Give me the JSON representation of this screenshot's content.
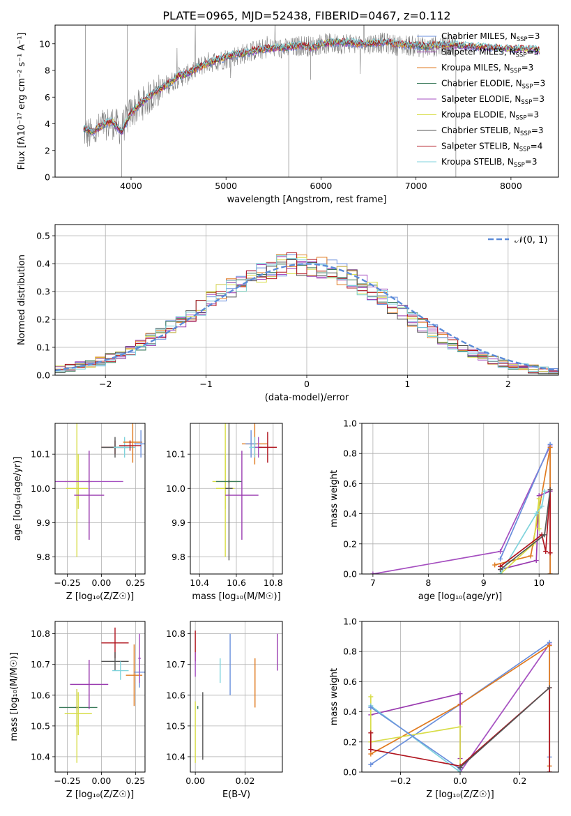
{
  "figure_title": "PLATE=0965, MJD=52438, FIBERID=0467, z=0.112",
  "colors": {
    "Chabrier MILES": "#6a8fdc",
    "Salpeter MILES": "#9a3bb0",
    "Kroupa MILES": "#e07a1f",
    "Chabrier ELODIE": "#3a7a5a",
    "Salpeter ELODIE": "#a54fc0",
    "Kroupa ELODIE": "#d8dd48",
    "Chabrier STELIB": "#555555",
    "Salpeter STELIB": "#b0141e",
    "Kroupa STELIB": "#7fd3dc"
  },
  "chart_data": [
    {
      "id": "spectrum",
      "type": "line",
      "title": "PLATE=0965, MJD=52438, FIBERID=0467, z=0.112",
      "xlabel": "wavelength [Angstrom, rest frame]",
      "ylabel": "Flux [fλ10⁻¹⁷ erg cm⁻² s⁻¹ A⁻¹]",
      "xlim": [
        3200,
        8500
      ],
      "ylim": [
        0,
        11.4
      ],
      "xticks": [
        4000,
        5000,
        6000,
        7000,
        8000
      ],
      "yticks": [
        0,
        2,
        4,
        6,
        8,
        10
      ],
      "grid": false,
      "legend_position": "upper-right",
      "legend": [
        {
          "label": "Chabrier MILES, N",
          "sub": "SSP",
          "tail": "=3"
        },
        {
          "label": "Salpeter MILES, N",
          "sub": "SSP",
          "tail": "=3"
        },
        {
          "label": "Kroupa MILES, N",
          "sub": "SSP",
          "tail": "=3"
        },
        {
          "label": "Chabrier ELODIE, N",
          "sub": "SSP",
          "tail": "=3"
        },
        {
          "label": "Salpeter ELODIE, N",
          "sub": "SSP",
          "tail": "=3"
        },
        {
          "label": "Kroupa ELODIE, N",
          "sub": "SSP",
          "tail": "=3"
        },
        {
          "label": "Chabrier STELIB, N",
          "sub": "SSP",
          "tail": "=3"
        },
        {
          "label": "Salpeter STELIB, N",
          "sub": "SSP",
          "tail": "=4"
        },
        {
          "label": "Kroupa STELIB, N",
          "sub": "SSP",
          "tail": "=3"
        }
      ],
      "observed_anchor_x": [
        3500,
        3600,
        3700,
        3800,
        3900,
        4000,
        4100,
        4200,
        4300,
        4400,
        4500,
        4600,
        4700,
        4800,
        4900,
        5000,
        5100,
        5200,
        5300,
        5400,
        5500,
        5600,
        5700,
        5800,
        5900,
        6000,
        6100,
        6200,
        6300,
        6400,
        6500,
        6600,
        6700,
        6800,
        6900,
        7000,
        7100,
        7200,
        7300,
        7400
      ],
      "observed_anchor_y": [
        3.4,
        3.1,
        3.9,
        4.1,
        3.6,
        4.9,
        5.4,
        6.0,
        6.6,
        7.0,
        7.5,
        7.7,
        8.2,
        8.6,
        8.7,
        8.9,
        9.1,
        9.3,
        9.5,
        9.6,
        9.7,
        9.6,
        9.7,
        9.9,
        9.8,
        10.0,
        10.0,
        10.0,
        10.1,
        9.9,
        10.0,
        10.1,
        10.0,
        9.9,
        9.9,
        9.8,
        9.7,
        9.8,
        9.9,
        9.9
      ],
      "model_anchor_x": [
        3500,
        3600,
        3700,
        3800,
        3900,
        4000,
        4100,
        4200,
        4300,
        4400,
        4500,
        4600,
        4700,
        4800,
        4900,
        5000,
        5100,
        5200,
        5300,
        5400,
        5500,
        5600,
        5700,
        5800,
        5900,
        6000,
        6100,
        6200,
        6300,
        6400,
        6500,
        6600,
        6700,
        6800,
        6900,
        7000,
        7100,
        7200,
        7300,
        7400,
        7600,
        7800,
        8000,
        8200,
        8300
      ],
      "model_anchor_y": [
        3.6,
        3.4,
        3.9,
        4.2,
        3.4,
        4.8,
        5.5,
        6.1,
        6.6,
        7.0,
        7.6,
        7.8,
        8.2,
        8.5,
        8.8,
        9.0,
        9.2,
        9.3,
        9.5,
        9.6,
        9.7,
        9.7,
        9.8,
        9.9,
        9.7,
        10.0,
        10.1,
        10.1,
        10.1,
        10.0,
        10.0,
        10.1,
        10.1,
        10.0,
        9.9,
        9.9,
        9.8,
        9.9,
        9.9,
        9.9,
        9.8,
        9.7,
        9.6,
        9.6,
        9.5
      ]
    },
    {
      "id": "residuals",
      "type": "histogram",
      "xlabel": "(data-model)/error",
      "ylabel": "Normed distribution",
      "xlim": [
        -2.5,
        2.5
      ],
      "ylim": [
        0,
        0.54
      ],
      "xticks": [
        -2,
        -1,
        0,
        1,
        2
      ],
      "xtick_labels": [
        "−2",
        "−1",
        "0",
        "1",
        "2"
      ],
      "yticks": [
        0.0,
        0.1,
        0.2,
        0.3,
        0.4,
        0.5
      ],
      "grid": true,
      "legend_position": "upper-right",
      "legend_label": "𝒩(0, 1)",
      "bin_start": -2.5,
      "bin_width": 0.1
    },
    {
      "id": "age-vs-Z",
      "type": "errorbar",
      "xlabel": "Z [log₁₀(Z/Z☉)]",
      "ylabel": "age [log₁₀(age/yr)]",
      "xlim": [
        -0.34,
        0.32
      ],
      "ylim": [
        9.75,
        10.19
      ],
      "xticks": [
        -0.25,
        0.0,
        0.25
      ],
      "xtick_labels": [
        "−0.25",
        "0.00",
        "0.25"
      ],
      "yticks": [
        9.8,
        9.9,
        10.0,
        10.1
      ],
      "grid": true,
      "points": [
        {
          "s": "Kroupa ELODIE",
          "x": -0.17,
          "xerr": 0.1,
          "y": 10.02,
          "yerr": 0.08
        },
        {
          "s": "Kroupa ELODIE",
          "x": -0.18,
          "xerr": 0.08,
          "y": 10.0,
          "yerr": 0.2
        },
        {
          "s": "Salpeter ELODIE",
          "x": -0.09,
          "xerr": 0.25,
          "y": 10.02,
          "yerr": 0.005
        },
        {
          "s": "Salpeter MILES",
          "x": -0.09,
          "xerr": 0.11,
          "y": 9.98,
          "yerr": 0.13
        },
        {
          "s": "Salpeter STELIB",
          "x": 0.1,
          "xerr": 0.1,
          "y": 10.12,
          "yerr": 0.02
        },
        {
          "s": "Chabrier STELIB",
          "x": 0.1,
          "xerr": 0.1,
          "y": 10.12,
          "yerr": 0.03
        },
        {
          "s": "Kroupa STELIB",
          "x": 0.17,
          "xerr": 0.08,
          "y": 10.12,
          "yerr": 0.03
        },
        {
          "s": "Kroupa MILES",
          "x": 0.23,
          "xerr": 0.07,
          "y": 10.135,
          "yerr": 0.06
        },
        {
          "s": "Chabrier MILES",
          "x": 0.29,
          "xerr": 0.05,
          "y": 10.13,
          "yerr": 0.04
        },
        {
          "s": "Salpeter STELIB",
          "x": 0.21,
          "xerr": 0.08,
          "y": 10.125,
          "yerr": 0.015
        }
      ]
    },
    {
      "id": "age-vs-mass",
      "type": "errorbar",
      "xlabel": "mass [log₁₀(M/M☉)]",
      "ylabel": "",
      "xlim": [
        10.35,
        10.85
      ],
      "ylim": [
        9.75,
        10.19
      ],
      "xticks": [
        10.4,
        10.6,
        10.8
      ],
      "yticks": [
        9.8,
        9.9,
        10.0,
        10.1
      ],
      "grid": true,
      "points": [
        {
          "s": "Kroupa ELODIE",
          "x": 10.54,
          "xerr": 0.07,
          "y": 10.02,
          "yerr": 0.08
        },
        {
          "s": "Kroupa ELODIE",
          "x": 10.54,
          "xerr": 0.05,
          "y": 10.0,
          "yerr": 0.2
        },
        {
          "s": "Chabrier ELODIE",
          "x": 10.56,
          "xerr": 0.07,
          "y": 10.02,
          "yerr": 0.005
        },
        {
          "s": "Chabrier STELIB",
          "x": 10.56,
          "xerr": 0.02,
          "y": 10.0,
          "yerr": 0.21
        },
        {
          "s": "Salpeter MILES",
          "x": 10.63,
          "xerr": 0.09,
          "y": 9.98,
          "yerr": 0.13
        },
        {
          "s": "Kroupa MILES",
          "x": 10.7,
          "xerr": 0.07,
          "y": 10.13,
          "yerr": 0.06
        },
        {
          "s": "Chabrier MILES",
          "x": 10.68,
          "xerr": 0.03,
          "y": 10.13,
          "yerr": 0.04
        },
        {
          "s": "Kroupa STELIB",
          "x": 10.7,
          "xerr": 0.03,
          "y": 10.12,
          "yerr": 0.03
        },
        {
          "s": "Salpeter ELODIE",
          "x": 10.72,
          "xerr": 0.02,
          "y": 10.12,
          "yerr": 0.03
        },
        {
          "s": "Salpeter STELIB",
          "x": 10.77,
          "xerr": 0.05,
          "y": 10.12,
          "yerr": 0.045
        }
      ]
    },
    {
      "id": "weight-vs-age",
      "type": "line",
      "xlabel": "age [log₁₀(age/yr)]",
      "ylabel": "mass weight",
      "xlim": [
        6.8,
        10.35
      ],
      "ylim": [
        0,
        1.0
      ],
      "xticks": [
        7,
        8,
        9,
        10
      ],
      "yticks": [
        0.0,
        0.2,
        0.4,
        0.6,
        0.8,
        1.0
      ],
      "grid": true,
      "series": [
        {
          "s": "Salpeter ELODIE",
          "x": [
            7.0,
            9.3,
            10.2
          ],
          "y": [
            0.0,
            0.15,
            0.85
          ]
        },
        {
          "s": "Chabrier MILES",
          "x": [
            9.3,
            10.2,
            10.2
          ],
          "y": [
            0.1,
            0.86,
            0.0
          ]
        },
        {
          "s": "Kroupa MILES",
          "x": [
            9.2,
            9.85,
            10.2,
            10.2
          ],
          "y": [
            0.06,
            0.12,
            0.84,
            0.0
          ]
        },
        {
          "s": "Salpeter MILES",
          "x": [
            9.3,
            9.95,
            10.0,
            10.2
          ],
          "y": [
            0.03,
            0.09,
            0.52,
            0.55
          ]
        },
        {
          "s": "Kroupa ELODIE",
          "x": [
            9.3,
            9.9,
            10.0,
            10.0
          ],
          "y": [
            0.0,
            0.2,
            0.5,
            0.3
          ]
        },
        {
          "s": "Kroupa STELIB",
          "x": [
            9.3,
            9.95,
            10.05,
            10.1
          ],
          "y": [
            0.0,
            0.4,
            0.45,
            0.55
          ]
        },
        {
          "s": "Salpeter STELIB",
          "x": [
            9.3,
            10.05,
            10.12,
            10.2,
            10.2
          ],
          "y": [
            0.05,
            0.26,
            0.15,
            0.56,
            0.14
          ]
        },
        {
          "s": "Chabrier STELIB",
          "x": [
            9.3,
            10.1,
            10.2
          ],
          "y": [
            0.03,
            0.26,
            0.56
          ]
        }
      ]
    },
    {
      "id": "mass-vs-Z",
      "type": "errorbar",
      "xlabel": "Z [log₁₀(Z/Z☉)]",
      "ylabel": "mass [log₁₀(M/M☉)]",
      "xlim": [
        -0.34,
        0.32
      ],
      "ylim": [
        10.35,
        10.84
      ],
      "xticks": [
        -0.25,
        0.0,
        0.25
      ],
      "xtick_labels": [
        "−0.25",
        "0.00",
        "0.25"
      ],
      "yticks": [
        10.4,
        10.5,
        10.6,
        10.7,
        10.8
      ],
      "grid": true,
      "points": [
        {
          "s": "Chabrier ELODIE",
          "x": -0.17,
          "xerr": 0.14,
          "y": 10.56,
          "yerr": 0.005
        },
        {
          "s": "Chabrier STELIB",
          "x": -0.18,
          "xerr": 0.01,
          "y": 10.56,
          "yerr": 0.06
        },
        {
          "s": "Kroupa ELODIE",
          "x": -0.17,
          "xerr": 0.1,
          "y": 10.54,
          "yerr": 0.07
        },
        {
          "s": "Kroupa ELODIE",
          "x": -0.18,
          "xerr": 0.01,
          "y": 10.5,
          "yerr": 0.12
        },
        {
          "s": "Salpeter MILES",
          "x": -0.09,
          "xerr": 0.14,
          "y": 10.635,
          "yerr": 0.08
        },
        {
          "s": "Salpeter STELIB",
          "x": 0.1,
          "xerr": 0.1,
          "y": 10.77,
          "yerr": 0.05
        },
        {
          "s": "Chabrier STELIB",
          "x": 0.1,
          "xerr": 0.1,
          "y": 10.71,
          "yerr": 0.03
        },
        {
          "s": "Kroupa STELIB",
          "x": 0.14,
          "xerr": 0.06,
          "y": 10.68,
          "yerr": 0.03
        },
        {
          "s": "Kroupa MILES",
          "x": 0.24,
          "xerr": 0.06,
          "y": 10.665,
          "yerr": 0.1
        },
        {
          "s": "Chabrier MILES",
          "x": 0.28,
          "xerr": 0.04,
          "y": 10.675,
          "yerr": 0.05
        },
        {
          "s": "Salpeter ELODIE",
          "x": 0.28,
          "xerr": 0.01,
          "y": 10.72,
          "yerr": 0.08
        }
      ]
    },
    {
      "id": "mass-vs-EBV",
      "type": "errorbar",
      "xlabel": "E(B-V)",
      "ylabel": "",
      "xlim": [
        -0.002,
        0.035
      ],
      "ylim": [
        10.35,
        10.84
      ],
      "xticks": [
        0.0,
        0.02
      ],
      "xtick_labels": [
        "0.00",
        "0.02"
      ],
      "yticks": [
        10.4,
        10.5,
        10.6,
        10.7,
        10.8
      ],
      "grid": true,
      "points": [
        {
          "s": "Salpeter STELIB",
          "x": 0.0,
          "xerr": 0.0,
          "y": 10.76,
          "yerr": 0.05
        },
        {
          "s": "Salpeter ELODIE",
          "x": 0.0,
          "xerr": 0.0,
          "y": 10.7,
          "yerr": 0.04
        },
        {
          "s": "Kroupa ELODIE",
          "x": 0.0,
          "xerr": 0.0,
          "y": 10.48,
          "yerr": 0.1
        },
        {
          "s": "Chabrier ELODIE",
          "x": 0.001,
          "xerr": 0.0,
          "y": 10.56,
          "yerr": 0.005
        },
        {
          "s": "Chabrier STELIB",
          "x": 0.003,
          "xerr": 0.0,
          "y": 10.5,
          "yerr": 0.11
        },
        {
          "s": "Kroupa STELIB",
          "x": 0.01,
          "xerr": 0.0,
          "y": 10.68,
          "yerr": 0.04
        },
        {
          "s": "Chabrier MILES",
          "x": 0.014,
          "xerr": 0.0,
          "y": 10.7,
          "yerr": 0.1
        },
        {
          "s": "Kroupa MILES",
          "x": 0.024,
          "xerr": 0.0,
          "y": 10.64,
          "yerr": 0.08
        },
        {
          "s": "Salpeter MILES",
          "x": 0.033,
          "xerr": 0.0,
          "y": 10.74,
          "yerr": 0.06
        }
      ]
    },
    {
      "id": "weight-vs-Z",
      "type": "line",
      "xlabel": "Z [log₁₀(Z/Z☉)]",
      "ylabel": "mass weight",
      "xlim": [
        -0.33,
        0.33
      ],
      "ylim": [
        0,
        1.0
      ],
      "xticks": [
        -0.2,
        0.0,
        0.2
      ],
      "xtick_labels": [
        "−0.2",
        "0.0",
        "0.2"
      ],
      "yticks": [
        0.0,
        0.2,
        0.4,
        0.6,
        0.8,
        1.0
      ],
      "grid": true,
      "series": [
        {
          "s": "Salpeter ELODIE",
          "x": [
            0.0,
            0.3
          ],
          "y": [
            0.0,
            0.85
          ]
        },
        {
          "s": "Chabrier MILES",
          "x": [
            -0.3,
            0.0,
            0.3,
            0.3
          ],
          "y": [
            0.05,
            0.45,
            0.86,
            0.1
          ]
        },
        {
          "s": "Kroupa MILES",
          "x": [
            -0.3,
            0.0,
            0.3,
            0.3
          ],
          "y": [
            0.12,
            0.45,
            0.84,
            0.04
          ]
        },
        {
          "s": "Salpeter MILES",
          "x": [
            -0.3,
            0.0,
            0.0
          ],
          "y": [
            0.38,
            0.52,
            0.09
          ]
        },
        {
          "s": "Kroupa ELODIE",
          "x": [
            -0.3,
            -0.3,
            0.0,
            0.0
          ],
          "y": [
            0.5,
            0.2,
            0.3,
            0.0
          ]
        },
        {
          "s": "Kroupa STELIB",
          "x": [
            -0.3,
            0.0
          ],
          "y": [
            0.44,
            0.0
          ]
        },
        {
          "s": "Chabrier MILES",
          "x": [
            -0.3,
            0.0
          ],
          "y": [
            0.43,
            0.02
          ]
        },
        {
          "s": "Salpeter STELIB",
          "x": [
            -0.3,
            -0.3,
            0.0,
            0.3,
            0.3
          ],
          "y": [
            0.26,
            0.15,
            0.04,
            0.56,
            0.0
          ]
        },
        {
          "s": "Chabrier STELIB",
          "x": [
            0.0,
            0.3
          ],
          "y": [
            0.03,
            0.56
          ]
        }
      ]
    }
  ]
}
